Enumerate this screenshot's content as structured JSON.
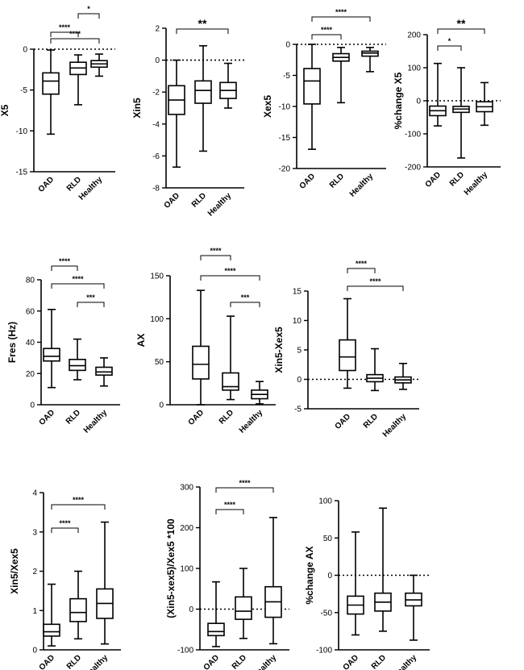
{
  "chart_data": [
    {
      "type": "box",
      "ylabel": "X5",
      "ylim": [
        -15,
        0
      ],
      "yticks": [
        -15,
        -10,
        -5,
        0
      ],
      "ref_line": 0,
      "categories": [
        "OAD",
        "RLD",
        "Healthy"
      ],
      "boxes": [
        {
          "min": -10.4,
          "q1": -5.5,
          "median": -3.9,
          "q3": -2.9,
          "max": -0.1
        },
        {
          "min": -6.8,
          "q1": -3.1,
          "median": -2.3,
          "q3": -1.6,
          "max": -0.7
        },
        {
          "min": -3.3,
          "q1": -2.2,
          "median": -1.8,
          "q3": -1.4,
          "max": -0.6
        }
      ],
      "brackets": [
        {
          "from": 0,
          "to": 1,
          "label": "****"
        },
        {
          "from": 1,
          "to": 2,
          "label": "*"
        },
        {
          "from": 0,
          "to": 2,
          "label": "****"
        }
      ]
    },
    {
      "type": "box",
      "ylabel": "Xin5",
      "ylim": [
        -8,
        2
      ],
      "yticks": [
        -8,
        -6,
        -4,
        -2,
        0,
        2
      ],
      "ref_line": 0,
      "categories": [
        "OAD",
        "RLD",
        "Healthy"
      ],
      "boxes": [
        {
          "min": -6.7,
          "q1": -3.4,
          "median": -2.5,
          "q3": -1.6,
          "max": 0.0
        },
        {
          "min": -5.7,
          "q1": -2.7,
          "median": -1.9,
          "q3": -1.3,
          "max": 0.9
        },
        {
          "min": -3.0,
          "q1": -2.4,
          "median": -1.9,
          "q3": -1.4,
          "max": -0.2
        }
      ],
      "brackets": [
        {
          "from": 0,
          "to": 2,
          "label": "**"
        }
      ]
    },
    {
      "type": "box",
      "ylabel": "Xex5",
      "ylim": [
        -20,
        0
      ],
      "yticks": [
        -20,
        -15,
        -10,
        -5,
        0
      ],
      "ref_line": 0,
      "categories": [
        "OAD",
        "RLD",
        "Healthy"
      ],
      "boxes": [
        {
          "min": -16.9,
          "q1": -9.6,
          "median": -5.9,
          "q3": -3.9,
          "max": 0.0
        },
        {
          "min": -9.4,
          "q1": -2.7,
          "median": -2.1,
          "q3": -1.5,
          "max": -0.5
        },
        {
          "min": -4.4,
          "q1": -1.9,
          "median": -1.4,
          "q3": -1.1,
          "max": -0.5
        }
      ],
      "brackets": [
        {
          "from": 0,
          "to": 1,
          "label": "****"
        },
        {
          "from": 0,
          "to": 2,
          "label": "****"
        }
      ]
    },
    {
      "type": "box",
      "ylabel": "%change X5",
      "ylim": [
        -200,
        200
      ],
      "yticks": [
        -200,
        -100,
        0,
        100,
        200
      ],
      "ref_line": 0,
      "categories": [
        "OAD",
        "RLD",
        "Healthy"
      ],
      "boxes": [
        {
          "min": -76,
          "q1": -45,
          "median": -30,
          "q3": -16,
          "max": 113
        },
        {
          "min": -173,
          "q1": -35,
          "median": -25,
          "q3": -17,
          "max": 100
        },
        {
          "min": -74,
          "q1": -33,
          "median": -18,
          "q3": -3,
          "max": 55
        }
      ],
      "brackets": [
        {
          "from": 0,
          "to": 1,
          "label": "*"
        },
        {
          "from": 0,
          "to": 2,
          "label": "**"
        }
      ]
    },
    {
      "type": "box",
      "ylabel": "Fres (Hz)",
      "ylim": [
        0,
        80
      ],
      "yticks": [
        0,
        20,
        40,
        60,
        80
      ],
      "ref_line": null,
      "categories": [
        "OAD",
        "RLD",
        "Healthy"
      ],
      "boxes": [
        {
          "min": 11,
          "q1": 28,
          "median": 31,
          "q3": 36,
          "max": 61
        },
        {
          "min": 16,
          "q1": 22,
          "median": 25,
          "q3": 29,
          "max": 42
        },
        {
          "min": 12,
          "q1": 19,
          "median": 21,
          "q3": 24,
          "max": 30
        }
      ],
      "brackets": [
        {
          "from": 0,
          "to": 1,
          "label": "****"
        },
        {
          "from": 0,
          "to": 2,
          "label": "****"
        },
        {
          "from": 1,
          "to": 2,
          "label": "***"
        }
      ]
    },
    {
      "type": "box",
      "ylabel": "AX",
      "ylim": [
        0,
        150
      ],
      "yticks": [
        0,
        50,
        100,
        150
      ],
      "ref_line": null,
      "categories": [
        "OAD",
        "RLD",
        "Healthy"
      ],
      "boxes": [
        {
          "min": 0,
          "q1": 30,
          "median": 47,
          "q3": 68,
          "max": 133
        },
        {
          "min": 6,
          "q1": 17,
          "median": 21,
          "q3": 37,
          "max": 103
        },
        {
          "min": 1,
          "q1": 7,
          "median": 12,
          "q3": 17,
          "max": 27
        }
      ],
      "brackets": [
        {
          "from": 0,
          "to": 1,
          "label": "****"
        },
        {
          "from": 0,
          "to": 2,
          "label": "****"
        },
        {
          "from": 1,
          "to": 2,
          "label": "***"
        }
      ]
    },
    {
      "type": "box",
      "ylabel": "Xin5-Xex5",
      "ylim": [
        -5,
        15
      ],
      "yticks": [
        -5,
        0,
        5,
        10,
        15
      ],
      "ref_line": 0,
      "categories": [
        "OAD",
        "RLD",
        "Healthy"
      ],
      "boxes": [
        {
          "min": -1.5,
          "q1": 1.5,
          "median": 3.8,
          "q3": 6.7,
          "max": 13.7
        },
        {
          "min": -1.9,
          "q1": -0.4,
          "median": 0.2,
          "q3": 0.8,
          "max": 5.2
        },
        {
          "min": -1.7,
          "q1": -0.6,
          "median": -0.1,
          "q3": 0.4,
          "max": 2.7
        }
      ],
      "brackets": [
        {
          "from": 0,
          "to": 1,
          "label": "****"
        },
        {
          "from": 0,
          "to": 2,
          "label": "****"
        }
      ]
    },
    {
      "type": "box",
      "ylabel": "Xin5/Xex5",
      "ylim": [
        0,
        4
      ],
      "yticks": [
        0,
        1,
        2,
        3,
        4
      ],
      "ref_line": null,
      "categories": [
        "OAD",
        "RLD",
        "Healthy"
      ],
      "boxes": [
        {
          "min": 0.1,
          "q1": 0.35,
          "median": 0.46,
          "q3": 0.65,
          "max": 1.67
        },
        {
          "min": 0.28,
          "q1": 0.72,
          "median": 0.95,
          "q3": 1.3,
          "max": 2.0
        },
        {
          "min": 0.15,
          "q1": 0.8,
          "median": 1.18,
          "q3": 1.55,
          "max": 3.25
        }
      ],
      "brackets": [
        {
          "from": 0,
          "to": 1,
          "label": "****"
        },
        {
          "from": 0,
          "to": 2,
          "label": "****"
        }
      ]
    },
    {
      "type": "box",
      "ylabel": "(Xin5-xex5)/Xex5 *100",
      "ylim": [
        -100,
        300
      ],
      "yticks": [
        -100,
        0,
        100,
        200,
        300
      ],
      "ref_line": 0,
      "categories": [
        "OAD",
        "RLD",
        "Healthy"
      ],
      "boxes": [
        {
          "min": -92,
          "q1": -65,
          "median": -55,
          "q3": -35,
          "max": 67
        },
        {
          "min": -72,
          "q1": -25,
          "median": -5,
          "q3": 30,
          "max": 100
        },
        {
          "min": -85,
          "q1": -20,
          "median": 18,
          "q3": 55,
          "max": 225
        }
      ],
      "brackets": [
        {
          "from": 0,
          "to": 1,
          "label": "****"
        },
        {
          "from": 0,
          "to": 2,
          "label": "****"
        }
      ]
    },
    {
      "type": "box",
      "ylabel": "%change AX",
      "ylim": [
        -100,
        100
      ],
      "yticks": [
        -100,
        -50,
        0,
        50,
        100
      ],
      "ref_line": 0,
      "categories": [
        "OAD",
        "RLD",
        "Healthy"
      ],
      "boxes": [
        {
          "min": -80,
          "q1": -52,
          "median": -40,
          "q3": -28,
          "max": 58
        },
        {
          "min": -75,
          "q1": -48,
          "median": -36,
          "q3": -24,
          "max": 90
        },
        {
          "min": -87,
          "q1": -41,
          "median": -33,
          "q3": -24,
          "max": 0
        }
      ],
      "brackets": []
    }
  ]
}
